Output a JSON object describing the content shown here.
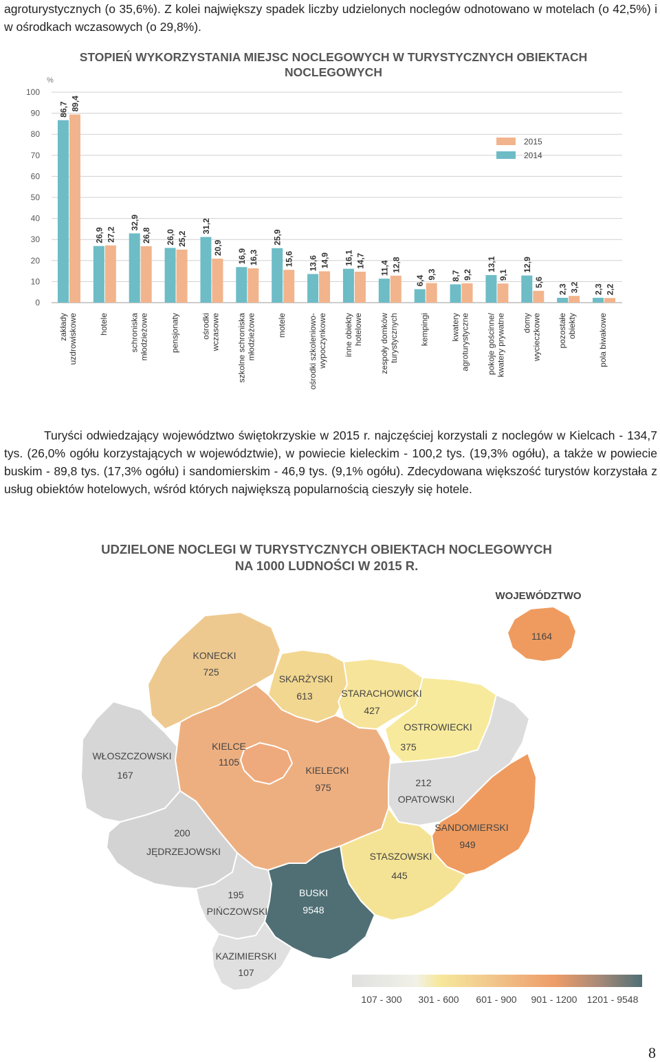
{
  "text": {
    "intro": "agroturystycznych (o 35,6%). Z kolei największy spadek liczby udzielonych noclegów odnotowano w motelach (o 42,5%) i w ośrodkach wczasowych (o 29,8%).",
    "paragraph": "Turyści odwiedzający województwo świętokrzyskie w 2015 r. najczęściej korzystali z noclegów w Kielcach - 134,7 tys. (26,0% ogółu korzystających w województwie), w powiecie kieleckim - 100,2 tys. (19,3% ogółu), a także w powiecie buskim - 89,8 tys. (17,3% ogółu) i sandomierskim - 46,9 tys. (9,1% ogółu). Zdecydowana większość turystów korzystała z usług obiektów hotelowych, wśród których największą popularnością cieszyły się hotele.",
    "page_number": "8"
  },
  "chart_data": {
    "type": "bar",
    "title_line1": "STOPIEŃ WYKORZYSTANIA MIEJSC NOCLEGOWYCH W TURYSTYCZNYCH OBIEKTACH",
    "title_line2": "NOCLEGOWYCH",
    "ylabel": "%",
    "ylim": [
      0,
      100
    ],
    "yticks": [
      "0",
      "10",
      "20",
      "30",
      "40",
      "50",
      "60",
      "70",
      "80",
      "90",
      "100"
    ],
    "grid": true,
    "legend_position": "top-right",
    "categories": [
      [
        "zakłady",
        "uzdrowiskowe"
      ],
      [
        "hotele"
      ],
      [
        "schroniska",
        "młodzieżowe"
      ],
      [
        "pensjonaty"
      ],
      [
        "ośrodki",
        "wczasowe"
      ],
      [
        "szkolne schroniska",
        "młodzieżowe"
      ],
      [
        "motele"
      ],
      [
        "ośrodki szkoleniowo-",
        "wypoczynkowe"
      ],
      [
        "inne obiekty",
        "hotelowe"
      ],
      [
        "zespoły domków",
        "turystycznych"
      ],
      [
        "kempingi"
      ],
      [
        "kwatery",
        "agroturystyczne"
      ],
      [
        "pokoje gościnne/",
        "kwatery prywatne"
      ],
      [
        "domy",
        "wycieczkowe"
      ],
      [
        "pozostałe",
        "obiekty"
      ],
      [
        "pola biwakowe"
      ]
    ],
    "series": [
      {
        "name": "2014",
        "color": "#6dbcc6",
        "values": [
          86.7,
          26.9,
          32.9,
          26.0,
          31.2,
          16.9,
          25.9,
          13.6,
          16.1,
          11.4,
          6.4,
          8.7,
          13.1,
          12.9,
          2.3,
          2.3
        ],
        "labels": [
          "86,7",
          "26,9",
          "32,9",
          "26,0",
          "31,2",
          "16,9",
          "25,9",
          "13,6",
          "16,1",
          "11,4",
          "6,4",
          "8,7",
          "13,1",
          "12,9",
          "2,3",
          "2,3"
        ]
      },
      {
        "name": "2015",
        "color": "#f2b48c",
        "values": [
          89.4,
          27.2,
          26.8,
          25.2,
          20.9,
          16.3,
          15.6,
          14.9,
          14.7,
          12.8,
          9.3,
          9.2,
          9.1,
          5.6,
          3.2,
          2.2
        ],
        "labels": [
          "89,4",
          "27,2",
          "26,8",
          "25,2",
          "20,9",
          "16,3",
          "15,6",
          "14,9",
          "14,7",
          "12,8",
          "9,3",
          "9,2",
          "9,1",
          "5,6",
          "3,2",
          "2,2"
        ]
      }
    ],
    "legend": [
      "2015",
      "2014"
    ]
  },
  "map": {
    "title_line1": "UDZIELONE NOCLEGI W TURYSTYCZNYCH OBIEKTACH NOCLEGOWYCH",
    "title_line2": "NA 1000 LUDNOŚCI W 2015 R.",
    "inset_label": "WOJEWÓDZTWO",
    "inset_value": "1164",
    "regions": [
      {
        "name": "KONECKI",
        "value": "725",
        "color": "#eec98f"
      },
      {
        "name": "SKARŻYSKI",
        "value": "613",
        "color": "#f2d790"
      },
      {
        "name": "STARACHOWICKI",
        "value": "427",
        "color": "#f6e49a"
      },
      {
        "name": "OSTROWIECKI",
        "value": "375",
        "color": "#f7ea9c"
      },
      {
        "name": "WŁOSZCZOWSKI",
        "value": "167",
        "color": "#d6d6d6"
      },
      {
        "name": "KIELCE",
        "value": "1105",
        "color": "#eeaa7d"
      },
      {
        "name": "KIELECKI",
        "value": "975",
        "color": "#eeaf80"
      },
      {
        "name": "OPATOWSKI",
        "value": "212",
        "color": "#dcdcdc"
      },
      {
        "name": "SANDOMIERSKI",
        "value": "949",
        "color": "#ef9b5f"
      },
      {
        "name": "JĘDRZEJOWSKI",
        "value": "200",
        "color": "#d3d3d3"
      },
      {
        "name": "STASZOWSKI",
        "value": "445",
        "color": "#f5e395"
      },
      {
        "name": "PIŃCZOWSKI",
        "value": "195",
        "color": "#dadada"
      },
      {
        "name": "BUSKI",
        "value": "9548",
        "color": "#4f6f75"
      },
      {
        "name": "KAZIMIERSKI",
        "value": "107",
        "color": "#e0e0e0"
      }
    ],
    "legend": [
      {
        "label": "107 - 300",
        "color": "#d9d9d9"
      },
      {
        "label": "301 - 600",
        "color": "#f6e89c"
      },
      {
        "label": "601 - 900",
        "color": "#f1c38a"
      },
      {
        "label": "901 - 1200",
        "color": "#ee9c68"
      },
      {
        "label": "1201 - 9548",
        "color": "#4f6f75"
      }
    ]
  }
}
